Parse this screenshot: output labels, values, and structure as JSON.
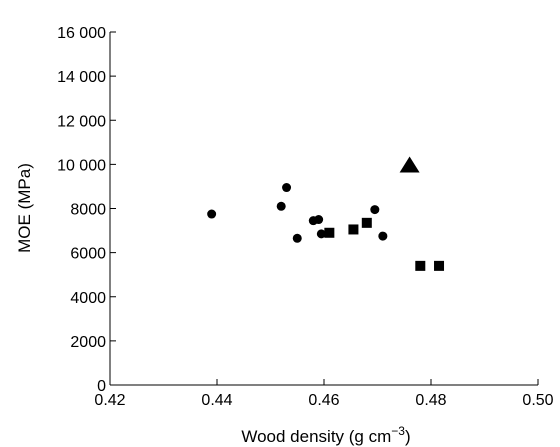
{
  "chart_data": {
    "type": "scatter",
    "xlabel": "Wood density (g cm",
    "xlabel_sup": "−3",
    "xlabel_close": ")",
    "ylabel": "MOE (MPa)",
    "xlim": [
      0.42,
      0.5
    ],
    "ylim": [
      0,
      16000
    ],
    "x_ticks": [
      0.42,
      0.44,
      0.46,
      0.48,
      0.5
    ],
    "x_tick_labels": [
      "0.42",
      "0.44",
      "0.46",
      "0.48",
      "0.50"
    ],
    "y_ticks": [
      0,
      2000,
      4000,
      6000,
      8000,
      10000,
      12000,
      14000,
      16000
    ],
    "y_tick_labels": [
      "0",
      "2000",
      "4000",
      "6000",
      "8000",
      "10 000",
      "12 000",
      "14 000",
      "16 000"
    ],
    "grid": false,
    "series": [
      {
        "marker": "circle",
        "color": "#000000",
        "points": [
          {
            "x": 0.439,
            "y": 7750
          },
          {
            "x": 0.452,
            "y": 8100
          },
          {
            "x": 0.453,
            "y": 8950
          },
          {
            "x": 0.455,
            "y": 6650
          },
          {
            "x": 0.458,
            "y": 7450
          },
          {
            "x": 0.459,
            "y": 7500
          },
          {
            "x": 0.4595,
            "y": 6850
          },
          {
            "x": 0.4695,
            "y": 7950
          },
          {
            "x": 0.471,
            "y": 6750
          }
        ]
      },
      {
        "marker": "square",
        "color": "#000000",
        "points": [
          {
            "x": 0.461,
            "y": 6900
          },
          {
            "x": 0.4655,
            "y": 7050
          },
          {
            "x": 0.468,
            "y": 7350
          },
          {
            "x": 0.478,
            "y": 5400
          },
          {
            "x": 0.4815,
            "y": 5400
          }
        ]
      },
      {
        "marker": "triangle",
        "color": "#000000",
        "points": [
          {
            "x": 0.476,
            "y": 9950
          }
        ]
      }
    ]
  }
}
